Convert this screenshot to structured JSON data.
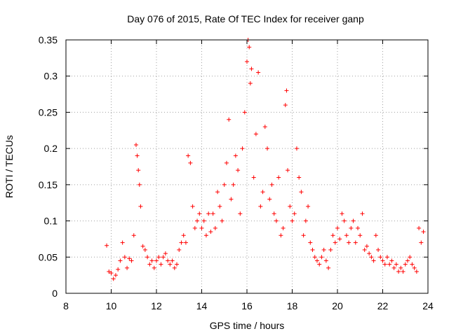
{
  "chart_data": {
    "type": "scatter",
    "title": "Day 076 of 2015, Rate Of TEC Index for receiver ganp",
    "xlabel": "GPS time / hours",
    "ylabel": "ROTI / TECUs",
    "xlim": [
      8,
      24
    ],
    "ylim": [
      0,
      0.35
    ],
    "xticks": [
      "8",
      "10",
      "12",
      "14",
      "16",
      "18",
      "20",
      "22",
      "24"
    ],
    "yticks": [
      "0",
      "0.05",
      "0.1",
      "0.15",
      "0.2",
      "0.25",
      "0.3",
      "0.35"
    ],
    "grid": true,
    "marker": "+",
    "color": "#ff0000",
    "series": [
      {
        "name": "ROTI",
        "x": [
          9.8,
          9.9,
          10.0,
          10.1,
          10.2,
          10.3,
          10.4,
          10.5,
          10.6,
          10.7,
          10.8,
          10.9,
          11.0,
          11.1,
          11.15,
          11.2,
          11.25,
          11.3,
          11.4,
          11.5,
          11.6,
          11.7,
          11.8,
          11.9,
          12.0,
          12.1,
          12.2,
          12.3,
          12.4,
          12.5,
          12.6,
          12.7,
          12.8,
          12.9,
          13.0,
          13.1,
          13.2,
          13.3,
          13.4,
          13.5,
          13.6,
          13.7,
          13.8,
          13.9,
          14.0,
          14.1,
          14.2,
          14.3,
          14.4,
          14.5,
          14.6,
          14.7,
          14.8,
          14.9,
          15.0,
          15.1,
          15.2,
          15.3,
          15.4,
          15.5,
          15.6,
          15.7,
          15.8,
          15.9,
          16.0,
          16.05,
          16.1,
          16.15,
          16.2,
          16.3,
          16.4,
          16.5,
          16.6,
          16.7,
          16.8,
          16.9,
          17.0,
          17.1,
          17.2,
          17.3,
          17.4,
          17.5,
          17.6,
          17.7,
          17.75,
          17.8,
          17.9,
          18.0,
          18.1,
          18.2,
          18.3,
          18.4,
          18.5,
          18.6,
          18.7,
          18.8,
          18.9,
          19.0,
          19.1,
          19.2,
          19.3,
          19.4,
          19.5,
          19.6,
          19.7,
          19.8,
          19.9,
          20.0,
          20.1,
          20.2,
          20.3,
          20.4,
          20.5,
          20.6,
          20.7,
          20.8,
          20.9,
          21.0,
          21.1,
          21.2,
          21.3,
          21.4,
          21.5,
          21.6,
          21.7,
          21.8,
          21.9,
          22.0,
          22.1,
          22.2,
          22.3,
          22.4,
          22.5,
          22.6,
          22.7,
          22.8,
          22.9,
          23.0,
          23.1,
          23.2,
          23.3,
          23.4,
          23.5,
          23.6,
          23.7,
          23.8
        ],
        "y": [
          0.066,
          0.03,
          0.028,
          0.02,
          0.025,
          0.033,
          0.045,
          0.07,
          0.05,
          0.035,
          0.048,
          0.045,
          0.08,
          0.205,
          0.19,
          0.17,
          0.15,
          0.12,
          0.065,
          0.06,
          0.05,
          0.04,
          0.045,
          0.035,
          0.045,
          0.05,
          0.04,
          0.05,
          0.055,
          0.045,
          0.04,
          0.045,
          0.035,
          0.04,
          0.06,
          0.07,
          0.08,
          0.07,
          0.19,
          0.18,
          0.12,
          0.09,
          0.1,
          0.11,
          0.09,
          0.1,
          0.08,
          0.11,
          0.085,
          0.11,
          0.09,
          0.14,
          0.12,
          0.1,
          0.15,
          0.18,
          0.24,
          0.13,
          0.15,
          0.19,
          0.17,
          0.11,
          0.2,
          0.25,
          0.32,
          0.35,
          0.34,
          0.29,
          0.31,
          0.16,
          0.22,
          0.305,
          0.12,
          0.14,
          0.23,
          0.2,
          0.13,
          0.15,
          0.11,
          0.1,
          0.16,
          0.08,
          0.09,
          0.26,
          0.28,
          0.17,
          0.12,
          0.1,
          0.11,
          0.2,
          0.16,
          0.14,
          0.08,
          0.1,
          0.12,
          0.07,
          0.06,
          0.05,
          0.045,
          0.04,
          0.05,
          0.06,
          0.045,
          0.035,
          0.06,
          0.08,
          0.07,
          0.09,
          0.075,
          0.11,
          0.1,
          0.08,
          0.07,
          0.09,
          0.1,
          0.07,
          0.09,
          0.08,
          0.11,
          0.06,
          0.065,
          0.055,
          0.05,
          0.045,
          0.08,
          0.06,
          0.05,
          0.045,
          0.04,
          0.05,
          0.04,
          0.045,
          0.035,
          0.04,
          0.03,
          0.035,
          0.03,
          0.04,
          0.045,
          0.05,
          0.04,
          0.035,
          0.03,
          0.09,
          0.07,
          0.085
        ]
      }
    ]
  }
}
